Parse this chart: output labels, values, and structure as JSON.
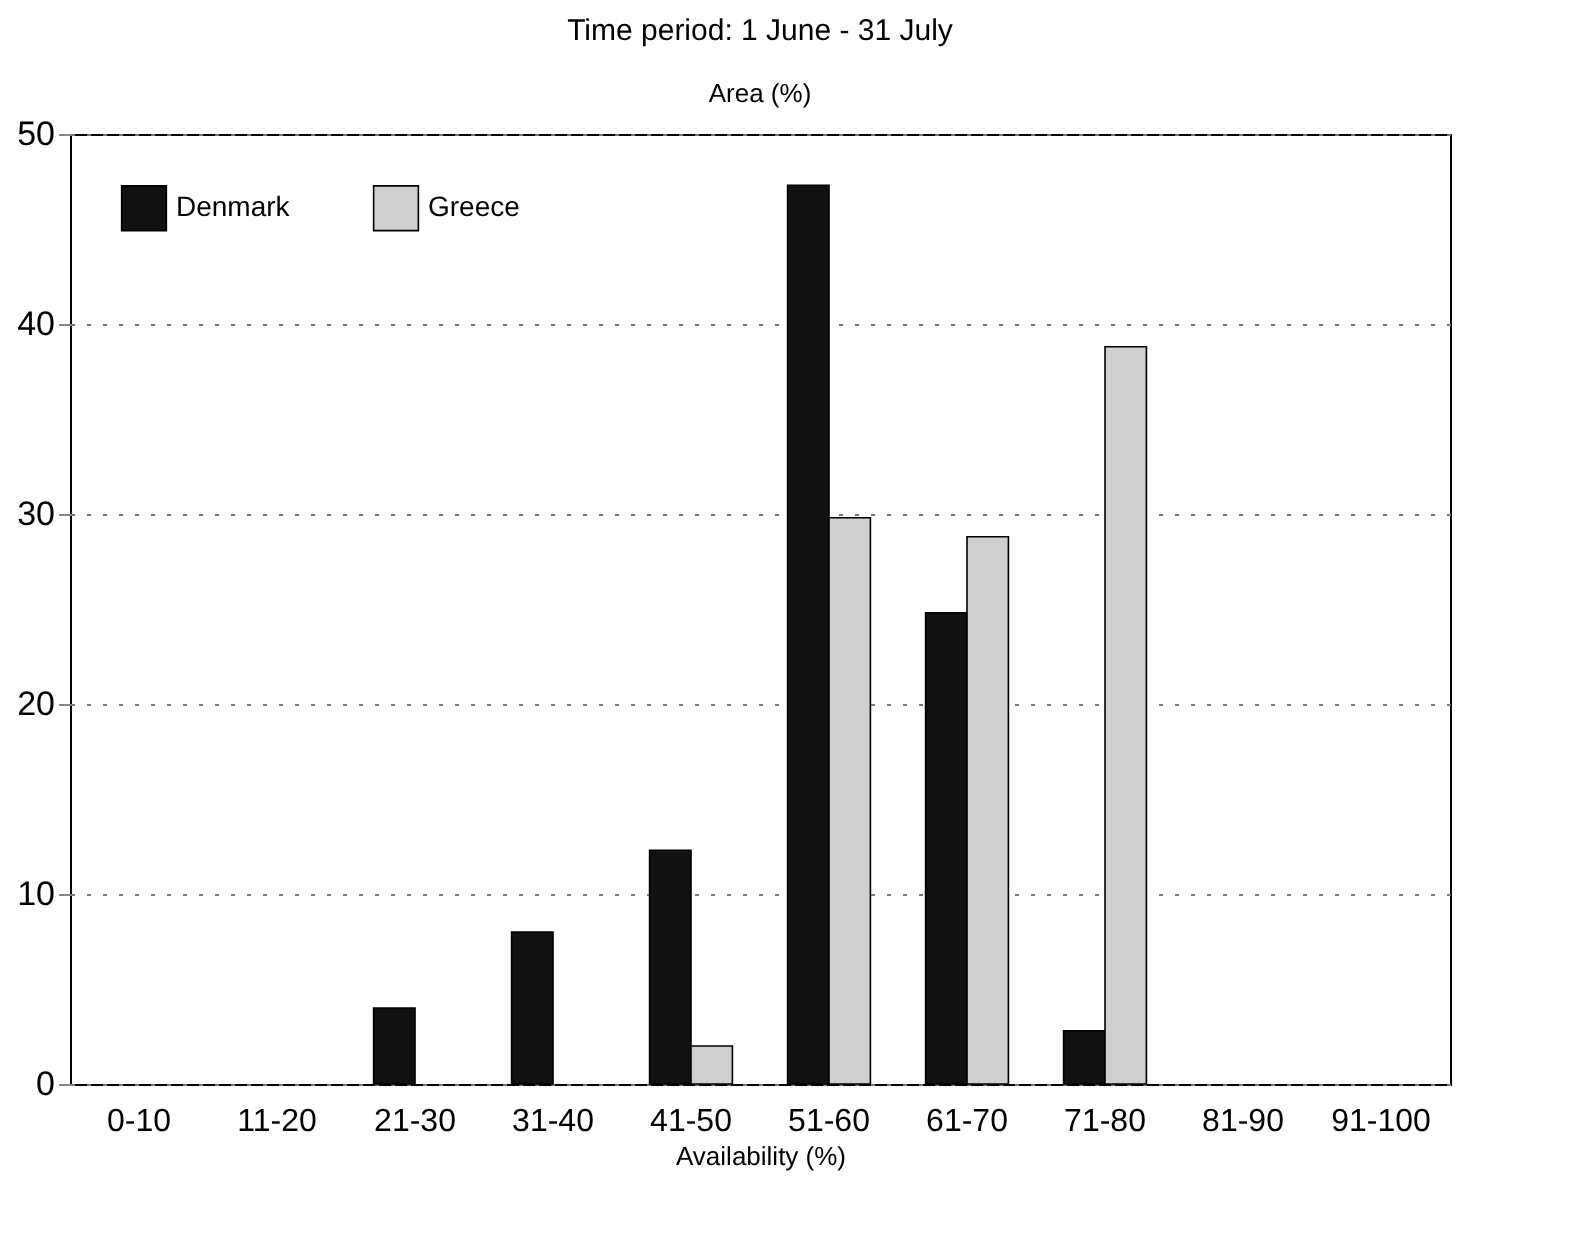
{
  "chart_data": {
    "type": "bar",
    "title": "Time period: 1 June - 31 July",
    "xlabel": "Availability (%)",
    "ylabel": "Area (%)",
    "categories": [
      "0-10",
      "11-20",
      "21-30",
      "31-40",
      "41-50",
      "51-60",
      "61-70",
      "71-80",
      "81-90",
      "91-100"
    ],
    "series": [
      {
        "name": "Denmark",
        "color": "#111111",
        "values": [
          null,
          null,
          4,
          8,
          12.3,
          47.3,
          24.8,
          2.8,
          null,
          null
        ]
      },
      {
        "name": "Greece",
        "color": "#cfcfcf",
        "values": [
          null,
          null,
          null,
          null,
          2,
          29.8,
          28.8,
          38.8,
          null,
          null
        ]
      }
    ],
    "ylim": [
      0,
      50
    ],
    "yticks": [
      0,
      10,
      20,
      30,
      40,
      50
    ],
    "grid": "y",
    "legend": "top left"
  }
}
